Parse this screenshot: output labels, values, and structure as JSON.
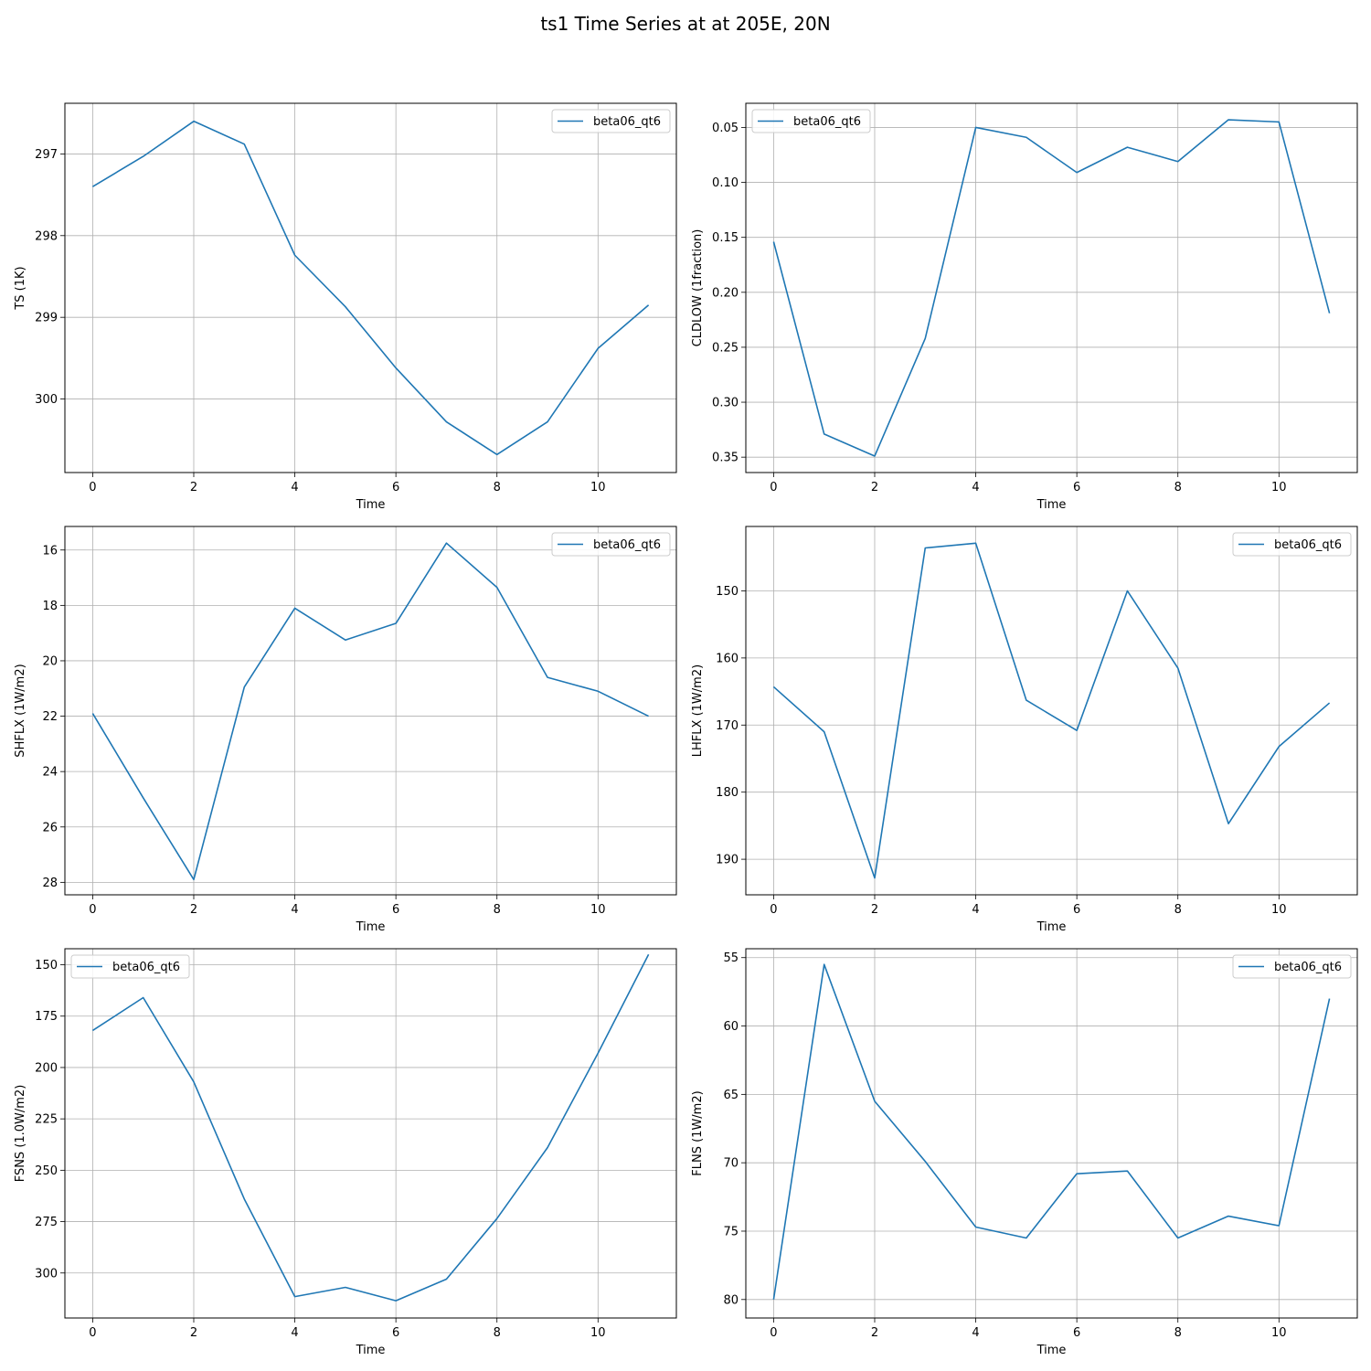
{
  "title": "ts1 Time Series at at 205E, 20N",
  "colors": {
    "series": "#1f77b4",
    "grid": "#b0b0b0",
    "axis": "#000000"
  },
  "chart_data": [
    {
      "type": "line",
      "xlabel": "Time",
      "ylabel": "TS (1K)",
      "x": [
        0,
        1,
        2,
        3,
        4,
        5,
        6,
        7,
        8,
        9,
        10,
        11
      ],
      "series": [
        {
          "name": "beta06_qt6",
          "values": [
            297.4,
            297.03,
            296.6,
            296.88,
            298.24,
            298.87,
            299.62,
            300.28,
            300.68,
            300.28,
            299.38,
            298.85
          ]
        }
      ],
      "xlim": [
        -0.55,
        11.55
      ],
      "xticks": [
        0,
        2,
        4,
        6,
        8,
        10
      ],
      "ylim": [
        296.38,
        300.9
      ],
      "yticks": [
        297,
        298,
        299,
        300
      ],
      "y_inverted": true,
      "grid": true,
      "legend_loc": "upper right"
    },
    {
      "type": "line",
      "xlabel": "Time",
      "ylabel": "CLDLOW (1fraction)",
      "x": [
        0,
        1,
        2,
        3,
        4,
        5,
        6,
        7,
        8,
        9,
        10,
        11
      ],
      "series": [
        {
          "name": "beta06_qt6",
          "values": [
            0.154,
            0.329,
            0.349,
            0.242,
            0.05,
            0.059,
            0.091,
            0.068,
            0.081,
            0.043,
            0.045,
            0.219
          ]
        }
      ],
      "xlim": [
        -0.55,
        11.55
      ],
      "xticks": [
        0,
        2,
        4,
        6,
        8,
        10
      ],
      "ylim": [
        0.028,
        0.364
      ],
      "yticks": [
        0.05,
        0.1,
        0.15,
        0.2,
        0.25,
        0.3,
        0.35
      ],
      "y_inverted": true,
      "grid": true,
      "legend_loc": "upper left"
    },
    {
      "type": "line",
      "xlabel": "Time",
      "ylabel": "SHFLX (1W/m2)",
      "x": [
        0,
        1,
        2,
        3,
        4,
        5,
        6,
        7,
        8,
        9,
        10,
        11
      ],
      "series": [
        {
          "name": "beta06_qt6",
          "values": [
            21.9,
            24.95,
            27.9,
            20.95,
            18.1,
            19.25,
            18.65,
            15.75,
            17.35,
            20.6,
            21.1,
            22.0
          ]
        }
      ],
      "xlim": [
        -0.55,
        11.55
      ],
      "xticks": [
        0,
        2,
        4,
        6,
        8,
        10
      ],
      "ylim": [
        15.15,
        28.45
      ],
      "yticks": [
        16,
        18,
        20,
        22,
        24,
        26,
        28
      ],
      "y_inverted": true,
      "grid": true,
      "legend_loc": "upper right"
    },
    {
      "type": "line",
      "xlabel": "Time",
      "ylabel": "LHFLX (1W/m2)",
      "x": [
        0,
        1,
        2,
        3,
        4,
        5,
        6,
        7,
        8,
        9,
        10,
        11
      ],
      "series": [
        {
          "name": "beta06_qt6",
          "values": [
            164.3,
            171.0,
            192.8,
            143.6,
            142.9,
            166.3,
            170.8,
            150.0,
            161.5,
            184.7,
            173.2,
            166.7
          ]
        }
      ],
      "xlim": [
        -0.55,
        11.55
      ],
      "xticks": [
        0,
        2,
        4,
        6,
        8,
        10
      ],
      "ylim": [
        140.4,
        195.3
      ],
      "yticks": [
        150,
        160,
        170,
        180,
        190
      ],
      "y_inverted": true,
      "grid": true,
      "legend_loc": "upper right"
    },
    {
      "type": "line",
      "xlabel": "Time",
      "ylabel": "FSNS (1.0W/m2)",
      "x": [
        0,
        1,
        2,
        3,
        4,
        5,
        6,
        7,
        8,
        9,
        10,
        11
      ],
      "series": [
        {
          "name": "beta06_qt6",
          "values": [
            182,
            166,
            207,
            264,
            311.5,
            307,
            313.5,
            303,
            273.5,
            239,
            193,
            145
          ]
        }
      ],
      "xlim": [
        -0.55,
        11.55
      ],
      "xticks": [
        0,
        2,
        4,
        6,
        8,
        10
      ],
      "ylim": [
        142.2,
        321.9
      ],
      "yticks": [
        150,
        175,
        200,
        225,
        250,
        275,
        300
      ],
      "y_inverted": true,
      "grid": true,
      "legend_loc": "upper left"
    },
    {
      "type": "line",
      "xlabel": "Time",
      "ylabel": "FLNS (1W/m2)",
      "x": [
        0,
        1,
        2,
        3,
        4,
        5,
        6,
        7,
        8,
        9,
        10,
        11
      ],
      "series": [
        {
          "name": "beta06_qt6",
          "values": [
            80.0,
            55.5,
            65.5,
            69.9,
            74.7,
            75.5,
            70.8,
            70.6,
            75.5,
            73.9,
            74.6,
            58.0
          ]
        }
      ],
      "xlim": [
        -0.55,
        11.55
      ],
      "xticks": [
        0,
        2,
        4,
        6,
        8,
        10
      ],
      "ylim": [
        54.35,
        81.35
      ],
      "yticks": [
        55,
        60,
        65,
        70,
        75,
        80
      ],
      "y_inverted": true,
      "grid": true,
      "legend_loc": "upper right"
    }
  ]
}
